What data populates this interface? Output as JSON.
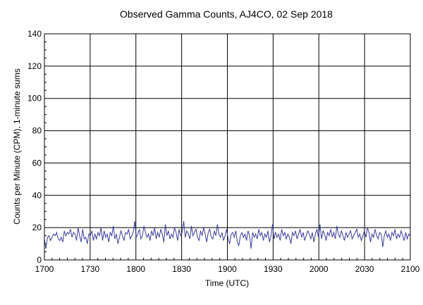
{
  "chart_data": {
    "type": "line",
    "title": "Observed Gamma Counts, AJ4CO, 02 Sep 2018",
    "xlabel": "Time (UTC)",
    "ylabel": "Counts per Minute (CPM), 1-minute sums",
    "x_tick_labels": [
      "1700",
      "1730",
      "1800",
      "1830",
      "1900",
      "1930",
      "2000",
      "2030",
      "2100"
    ],
    "y_tick_labels": [
      "0",
      "20",
      "40",
      "60",
      "80",
      "100",
      "120",
      "140"
    ],
    "x_start": "17:00",
    "x_end": "21:00",
    "ylim": [
      0,
      140
    ],
    "grid": true,
    "line_color": "#3b3b9e",
    "series": [
      {
        "values": [
          13,
          7,
          14,
          15,
          12,
          14,
          16,
          15,
          17,
          13,
          12,
          14,
          11,
          18,
          15,
          17,
          16,
          19,
          14,
          17,
          16,
          12,
          20,
          15,
          11,
          19,
          13,
          14,
          10,
          16,
          15,
          18,
          12,
          16,
          13,
          17,
          15,
          20,
          12,
          18,
          14,
          16,
          11,
          17,
          15,
          21,
          13,
          16,
          10,
          14,
          18,
          15,
          12,
          17,
          16,
          19,
          13,
          15,
          17,
          24,
          14,
          16,
          19,
          13,
          15,
          21,
          17,
          14,
          16,
          12,
          18,
          15,
          20,
          13,
          17,
          14,
          19,
          16,
          11,
          22,
          15,
          18,
          13,
          16,
          14,
          20,
          17,
          12,
          19,
          15,
          17,
          24,
          14,
          18,
          16,
          13,
          21,
          15,
          17,
          19,
          14,
          12,
          18,
          15,
          20,
          16,
          11,
          17,
          19,
          14,
          13,
          18,
          15,
          22,
          16,
          14,
          17,
          12,
          15,
          19,
          13,
          10,
          16,
          17,
          14,
          18,
          11,
          9,
          15,
          17,
          14,
          16,
          12,
          18,
          15,
          7,
          17,
          14,
          16,
          13,
          19,
          15,
          17,
          12,
          16,
          14,
          18,
          11,
          15,
          22,
          13,
          17,
          14,
          16,
          12,
          19,
          15,
          17,
          13,
          16,
          14,
          10,
          17,
          15,
          18,
          13,
          16,
          19,
          14,
          17,
          12,
          15,
          18,
          16,
          13,
          17,
          11,
          16,
          19,
          14,
          22,
          13,
          18,
          16,
          12,
          17,
          15,
          19,
          14,
          17,
          13,
          21,
          16,
          14,
          18,
          15,
          12,
          17,
          14,
          16,
          18,
          13,
          15,
          17,
          19,
          14,
          16,
          12,
          15,
          18,
          14,
          20,
          17,
          11,
          16,
          14,
          19,
          15,
          13,
          17,
          16,
          8,
          15,
          18,
          14,
          16,
          12,
          17,
          15,
          19,
          13,
          16,
          14,
          18,
          15,
          12,
          17,
          13,
          16,
          15
        ]
      }
    ]
  }
}
